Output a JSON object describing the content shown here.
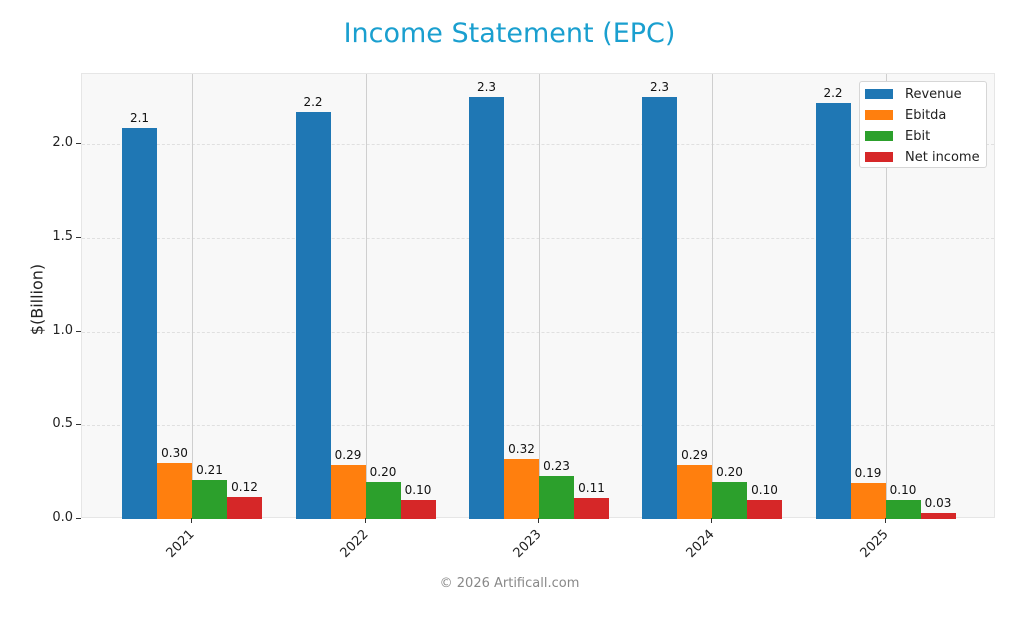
{
  "title": "Income Statement (EPC)",
  "footer": "© 2026 Artificall.com",
  "chart_data": {
    "type": "bar",
    "title": "Income Statement (EPC)",
    "xlabel": "",
    "ylabel": "$(Billion)",
    "ylim": [
      0,
      2.37
    ],
    "yticks": [
      "0.0",
      "0.5",
      "1.0",
      "1.5",
      "2.0"
    ],
    "categories": [
      "2021",
      "2022",
      "2023",
      "2024",
      "2025"
    ],
    "grid": true,
    "legend_position": "upper right",
    "series": [
      {
        "name": "Revenue",
        "color": "#1f77b4",
        "values": [
          2.085,
          2.17,
          2.25,
          2.25,
          2.22
        ],
        "labels": [
          "2.1",
          "2.2",
          "2.3",
          "2.3",
          "2.2"
        ]
      },
      {
        "name": "Ebitda",
        "color": "#ff7f0e",
        "values": [
          0.3,
          0.29,
          0.32,
          0.29,
          0.19
        ],
        "labels": [
          "0.30",
          "0.29",
          "0.32",
          "0.29",
          "0.19"
        ]
      },
      {
        "name": "Ebit",
        "color": "#2ca02c",
        "values": [
          0.21,
          0.2,
          0.23,
          0.2,
          0.1
        ],
        "labels": [
          "0.21",
          "0.20",
          "0.23",
          "0.20",
          "0.10"
        ]
      },
      {
        "name": "Net income",
        "color": "#d62728",
        "values": [
          0.12,
          0.1,
          0.11,
          0.1,
          0.03
        ],
        "labels": [
          "0.12",
          "0.10",
          "0.11",
          "0.10",
          "0.03"
        ]
      }
    ]
  }
}
